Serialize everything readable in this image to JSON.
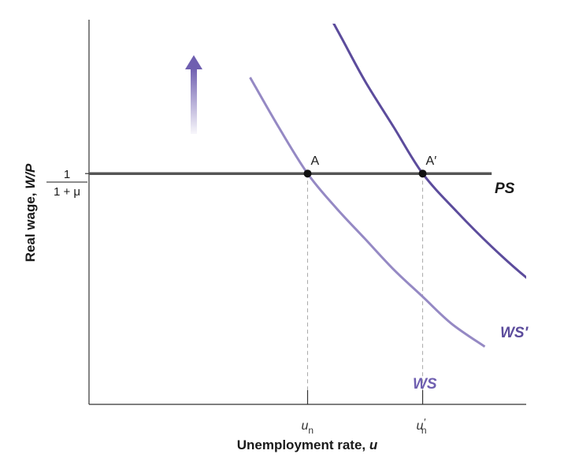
{
  "chart_data": {
    "type": "line",
    "xlabel_prefix": "Unemployment rate, ",
    "xlabel_var": "u",
    "ylabel_prefix": "Real wage, ",
    "ylabel_var": "W/P",
    "y_tick": {
      "numerator": "1",
      "denominator": "1 + μ",
      "value": 0.6
    },
    "x_ticks": [
      {
        "main": "u",
        "sub": "n",
        "prime": "",
        "value": 1.0
      },
      {
        "main": "u",
        "sub": "n",
        "prime": "′",
        "value": 2.0
      }
    ],
    "xlim": [
      -0.9,
      2.9
    ],
    "ylim": [
      0,
      1.0
    ],
    "series": [
      {
        "name": "PS",
        "kind": "horizontal",
        "y": 0.6,
        "x": [
          -0.9,
          2.6
        ],
        "color": "#555555"
      },
      {
        "name": "WS",
        "kind": "curve",
        "color": "#9589c4",
        "x": [
          0.5,
          0.75,
          1.0,
          1.25,
          1.5,
          1.75,
          2.0,
          2.25,
          2.54
        ],
        "y": [
          0.85,
          0.72,
          0.6,
          0.51,
          0.43,
          0.35,
          0.28,
          0.21,
          0.15
        ]
      },
      {
        "name": "WS′",
        "kind": "curve",
        "color": "#5c4c9c",
        "x": [
          1.1,
          1.3,
          1.5,
          1.75,
          2.0,
          2.3,
          2.6,
          2.9,
          3.25
        ],
        "y": [
          1.06,
          0.95,
          0.84,
          0.72,
          0.6,
          0.5,
          0.41,
          0.33,
          0.25
        ]
      }
    ],
    "points": [
      {
        "label": "A",
        "x": 1.0,
        "y": 0.6
      },
      {
        "label": "A′",
        "x": 2.0,
        "y": 0.6
      }
    ],
    "annotation": {
      "kind": "arrow-up",
      "color": "#6f5fb0"
    },
    "grid": false
  }
}
